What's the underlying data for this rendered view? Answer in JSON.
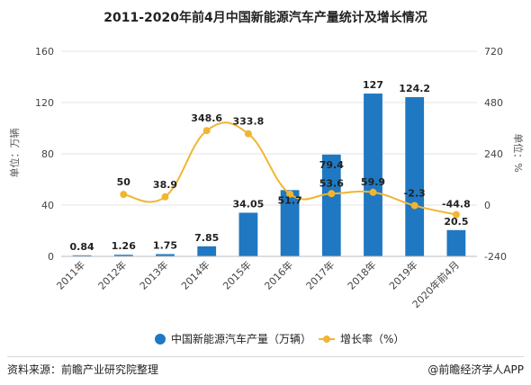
{
  "chart_data": {
    "type": "bar",
    "title": "2011-2020年前4月中国新能源汽车产量统计及增长情况",
    "categories": [
      "2011年",
      "2012年",
      "2013年",
      "2014年",
      "2015年",
      "2016年",
      "2017年",
      "2018年",
      "2019年",
      "2020年前4月"
    ],
    "series": [
      {
        "name": "中国新能源汽车产量（万辆）",
        "type": "bar",
        "axis": "left",
        "color": "#1f78c1",
        "values": [
          0.84,
          1.26,
          1.75,
          7.85,
          34.05,
          51.7,
          79.4,
          127,
          124.2,
          20.5
        ],
        "labels": [
          "0.84",
          "1.26",
          "1.75",
          "7.85",
          "34.05",
          "51.7",
          "79.4",
          "127",
          "124.2",
          "20.5"
        ]
      },
      {
        "name": "增长率（%）",
        "type": "line",
        "axis": "right",
        "color": "#f2b531",
        "values": [
          null,
          50,
          38.9,
          348.6,
          333.8,
          51.7,
          53.6,
          59.9,
          -2.3,
          -44.8
        ],
        "labels": [
          "",
          "50",
          "38.9",
          "348.6",
          "333.8",
          "",
          "53.6",
          "59.9",
          "-2.3",
          "-44.8"
        ]
      }
    ],
    "ylabel_left": "单位：万辆",
    "ylabel_right": "单位：%",
    "ylim_left": [
      0,
      160
    ],
    "yticks_left": [
      0,
      40,
      80,
      120,
      160
    ],
    "ylim_right": [
      -240,
      720
    ],
    "yticks_right": [
      -240,
      0,
      240,
      480,
      720
    ],
    "grid": true,
    "legend": "bottom-center"
  },
  "footer": {
    "source": "资料来源：前瞻产业研究院整理",
    "brand": "@前瞻经济学人APP"
  },
  "watermark": "前瞻产业研究院"
}
